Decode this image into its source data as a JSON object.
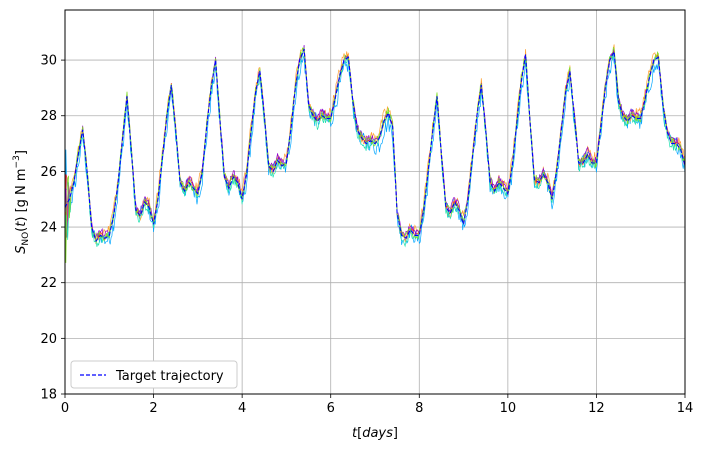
{
  "chart_data": {
    "type": "line",
    "title": "",
    "xlabel": "t[days]",
    "ylabel": "S_NO(t) [g N m^-3]",
    "xlim": [
      0,
      14
    ],
    "ylim": [
      18,
      31.8
    ],
    "x_ticks": [
      0,
      2,
      4,
      6,
      8,
      10,
      12,
      14
    ],
    "y_ticks": [
      18,
      20,
      22,
      24,
      26,
      28,
      30
    ],
    "grid": true,
    "legend": {
      "position": "lower-left",
      "entries": [
        "Target trajectory"
      ]
    },
    "target": {
      "name": "Target trajectory",
      "color": "#0000ff",
      "style": "dashed",
      "x": [
        0,
        0.1,
        0.2,
        0.3,
        0.4,
        0.5,
        0.6,
        0.7,
        0.8,
        0.9,
        1.0,
        1.1,
        1.2,
        1.3,
        1.4,
        1.5,
        1.6,
        1.7,
        1.8,
        1.9,
        2.0,
        2.1,
        2.2,
        2.3,
        2.4,
        2.5,
        2.6,
        2.7,
        2.8,
        2.9,
        3.0,
        3.1,
        3.2,
        3.3,
        3.4,
        3.5,
        3.6,
        3.7,
        3.8,
        3.9,
        4.0,
        4.1,
        4.2,
        4.3,
        4.4,
        4.5,
        4.6,
        4.7,
        4.8,
        4.9,
        5.0,
        5.1,
        5.2,
        5.3,
        5.4,
        5.5,
        5.6,
        5.7,
        5.8,
        5.9,
        6.0,
        6.1,
        6.2,
        6.3,
        6.4,
        6.5,
        6.6,
        6.7,
        6.8,
        6.9,
        7.0,
        7.1,
        7.2,
        7.3,
        7.4,
        7.5,
        7.6,
        7.7,
        7.8,
        7.9,
        8.0,
        8.1,
        8.2,
        8.3,
        8.4,
        8.5,
        8.6,
        8.7,
        8.8,
        8.9,
        9.0,
        9.1,
        9.2,
        9.3,
        9.4,
        9.5,
        9.6,
        9.7,
        9.8,
        9.9,
        10.0,
        10.1,
        10.2,
        10.3,
        10.4,
        10.5,
        10.6,
        10.7,
        10.8,
        10.9,
        11.0,
        11.1,
        11.2,
        11.3,
        11.4,
        11.5,
        11.6,
        11.7,
        11.8,
        11.9,
        12.0,
        12.1,
        12.2,
        12.3,
        12.4,
        12.5,
        12.6,
        12.7,
        12.8,
        12.9,
        13.0,
        13.1,
        13.2,
        13.3,
        13.4,
        13.5,
        13.6,
        13.7,
        13.8,
        13.9,
        14.0
      ],
      "y": [
        24.7,
        25.0,
        25.6,
        26.6,
        27.5,
        26.0,
        24.0,
        23.5,
        23.7,
        23.6,
        23.7,
        24.4,
        25.6,
        27.2,
        28.7,
        26.7,
        24.6,
        24.4,
        24.9,
        24.7,
        24.1,
        25.0,
        26.5,
        28.0,
        29.1,
        27.5,
        25.6,
        25.3,
        25.6,
        25.4,
        25.2,
        26.0,
        27.6,
        29.0,
        30.0,
        27.8,
        25.8,
        25.4,
        25.8,
        25.6,
        25.0,
        25.9,
        27.4,
        28.8,
        29.6,
        28.0,
        26.2,
        26.0,
        26.4,
        26.2,
        26.3,
        27.5,
        29.0,
        30.0,
        30.4,
        28.4,
        28.0,
        27.8,
        28.0,
        27.9,
        27.9,
        28.6,
        29.4,
        30.0,
        30.1,
        28.5,
        27.5,
        27.2,
        27.0,
        27.1,
        27.0,
        27.2,
        27.8,
        28.1,
        27.6,
        24.5,
        23.7,
        23.6,
        23.9,
        23.7,
        23.7,
        24.6,
        26.0,
        27.4,
        28.7,
        26.6,
        24.7,
        24.5,
        24.9,
        24.6,
        24.1,
        25.0,
        26.5,
        28.0,
        29.1,
        27.5,
        25.6,
        25.3,
        25.6,
        25.4,
        25.2,
        26.2,
        27.7,
        29.2,
        30.2,
        27.8,
        25.7,
        25.6,
        25.9,
        25.6,
        25.0,
        26.0,
        27.4,
        28.8,
        29.6,
        28.0,
        26.3,
        26.3,
        26.6,
        26.3,
        26.3,
        27.6,
        29.0,
        30.0,
        30.3,
        28.5,
        28.0,
        27.8,
        28.0,
        27.9,
        27.9,
        28.6,
        29.4,
        30.0,
        30.1,
        28.4,
        27.4,
        27.0,
        27.0,
        26.8,
        26.2
      ]
    },
    "ensemble": {
      "colors": [
        "#00a6ff",
        "#ffa030",
        "#ff2020",
        "#9000d0",
        "#20e0b0",
        "#80e020"
      ],
      "offsets": [
        -0.35,
        0.25,
        0.05,
        0.15,
        -0.15,
        0.1
      ],
      "noise": [
        0.55,
        0.4,
        0.2,
        0.25,
        0.35,
        0.3
      ]
    }
  }
}
